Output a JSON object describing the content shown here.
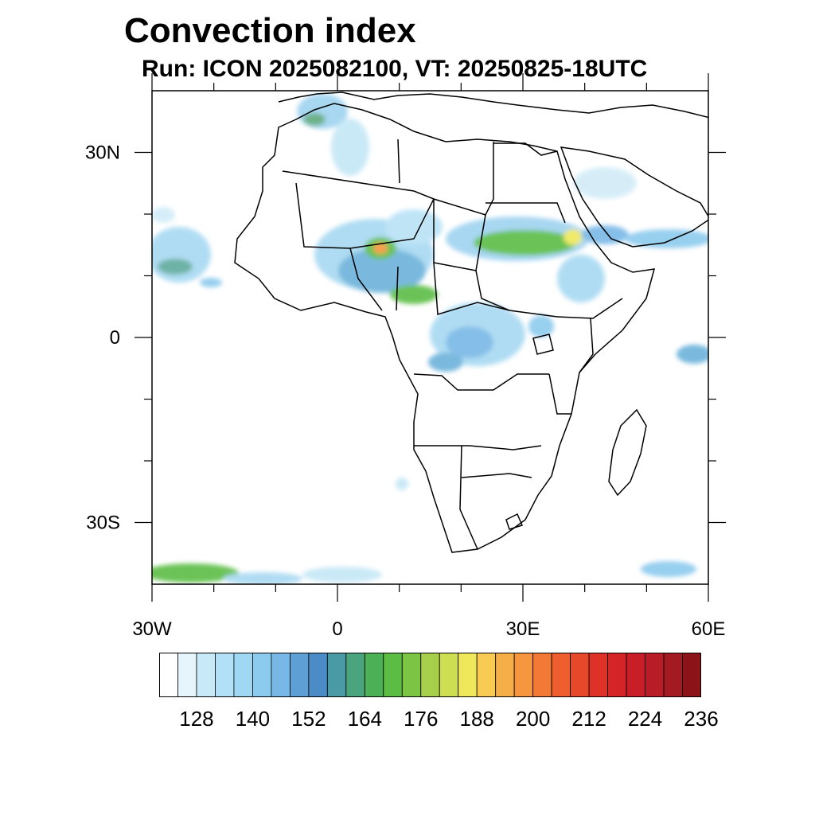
{
  "title": "Convection index",
  "subtitle": "Run: ICON 2025082100,  VT: 20250825-18UTC",
  "map": {
    "extent": {
      "lon": [
        -30,
        60
      ],
      "lat": [
        -40,
        40
      ]
    },
    "x_ticks": [
      {
        "lon": -30,
        "label": "30W"
      },
      {
        "lon": 0,
        "label": "0"
      },
      {
        "lon": 30,
        "label": "30E"
      },
      {
        "lon": 60,
        "label": "60E"
      }
    ],
    "y_ticks": [
      {
        "lat": 30,
        "label": "30N"
      },
      {
        "lat": 0,
        "label": "0"
      },
      {
        "lat": -30,
        "label": "30S"
      }
    ],
    "minor_lon": [
      -20,
      -10,
      10,
      20,
      40,
      50
    ],
    "minor_lat": [
      20,
      10,
      -10,
      -20
    ]
  },
  "colorbar": {
    "colors": [
      "#ffffff",
      "#e6f4fb",
      "#c8e9f8",
      "#b2e0f6",
      "#a0d8f4",
      "#8ccaee",
      "#78b8e6",
      "#5e9fd6",
      "#4c8cc6",
      "#4a9aa6",
      "#4aa47e",
      "#4bb056",
      "#5cbd44",
      "#7cc444",
      "#a6cf4c",
      "#cede52",
      "#eee85a",
      "#f8cc52",
      "#f6ae48",
      "#f6963e",
      "#f27a36",
      "#ee5e2e",
      "#e8482a",
      "#de3228",
      "#d42428",
      "#c81e28",
      "#b81c26",
      "#a41a22",
      "#8c1418"
    ],
    "labels": [
      "128",
      "140",
      "152",
      "164",
      "176",
      "188",
      "200",
      "212",
      "224",
      "236"
    ],
    "label_start_index": 2,
    "label_step": 3
  }
}
